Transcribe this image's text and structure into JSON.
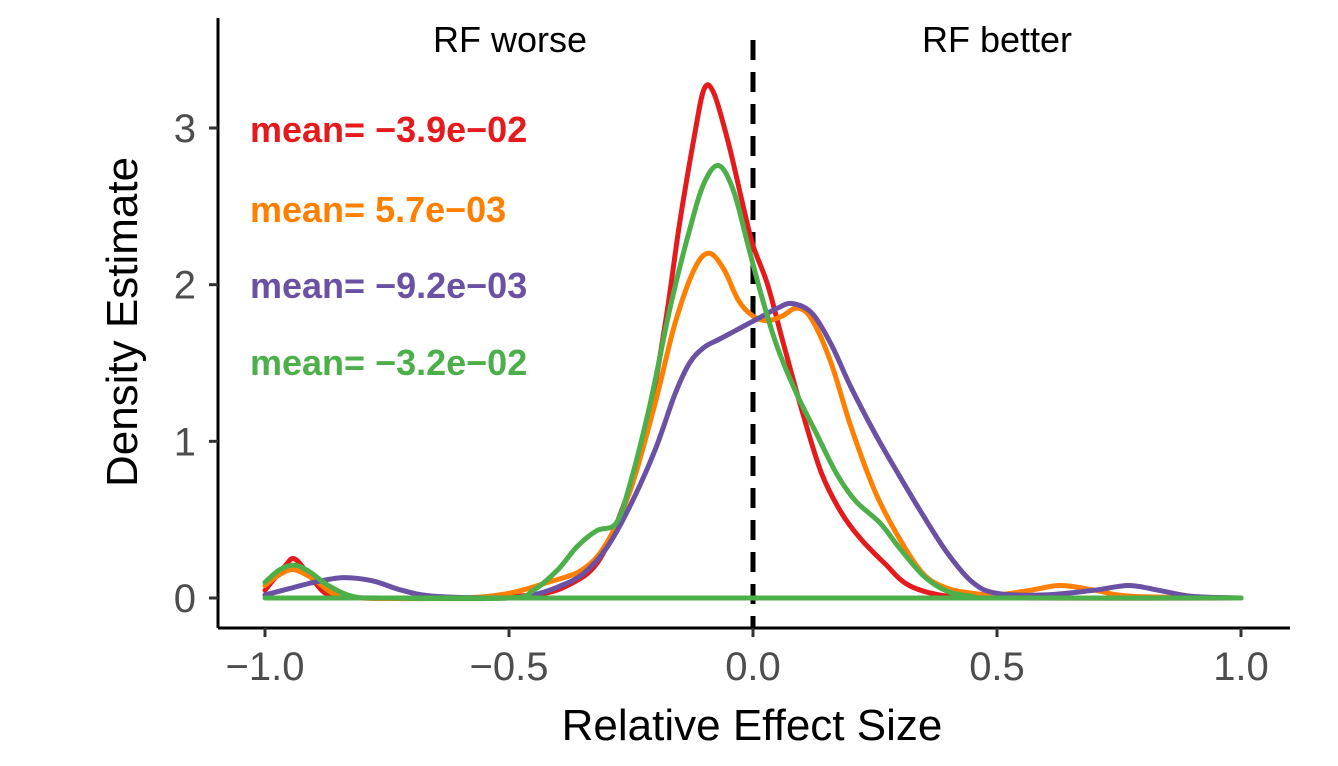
{
  "chart_data": {
    "type": "line",
    "xlabel": "Relative Effect Size",
    "ylabel": "Density Estimate",
    "xlim": [
      -1.05,
      1.1
    ],
    "ylim": [
      -0.18,
      3.6
    ],
    "x_ticks": [
      -1.0,
      -0.5,
      0.0,
      0.5,
      1.0
    ],
    "x_tick_labels": [
      "−1.0",
      "−0.5",
      "0.0",
      "0.5",
      "1.0"
    ],
    "y_ticks": [
      0,
      1,
      2,
      3
    ],
    "y_tick_labels": [
      "0",
      "1",
      "2",
      "3"
    ],
    "grid": false,
    "reference_line": {
      "x": 0.0,
      "style": "dashed",
      "color": "#000000"
    },
    "region_labels": [
      {
        "text": "RF worse",
        "x": -0.5
      },
      {
        "text": "RF better",
        "x": 0.5
      }
    ],
    "series": [
      {
        "color": "#e41a1c",
        "mean_label": "mean= −3.9e−02",
        "points": [
          [
            -1.0,
            0.05
          ],
          [
            -0.96,
            0.2
          ],
          [
            -0.94,
            0.25
          ],
          [
            -0.91,
            0.15
          ],
          [
            -0.87,
            0.02
          ],
          [
            -0.8,
            0.0
          ],
          [
            -0.6,
            0.0
          ],
          [
            -0.45,
            0.02
          ],
          [
            -0.38,
            0.08
          ],
          [
            -0.32,
            0.22
          ],
          [
            -0.27,
            0.55
          ],
          [
            -0.22,
            1.05
          ],
          [
            -0.18,
            1.75
          ],
          [
            -0.15,
            2.4
          ],
          [
            -0.12,
            2.95
          ],
          [
            -0.1,
            3.25
          ],
          [
            -0.08,
            3.22
          ],
          [
            -0.05,
            2.9
          ],
          [
            -0.02,
            2.5
          ],
          [
            0.0,
            2.25
          ],
          [
            0.03,
            2.0
          ],
          [
            0.06,
            1.65
          ],
          [
            0.1,
            1.2
          ],
          [
            0.14,
            0.8
          ],
          [
            0.18,
            0.55
          ],
          [
            0.22,
            0.38
          ],
          [
            0.27,
            0.22
          ],
          [
            0.32,
            0.08
          ],
          [
            0.4,
            0.01
          ],
          [
            0.5,
            0.0
          ],
          [
            1.0,
            0.0
          ]
        ]
      },
      {
        "color": "#ff7f00",
        "mean_label": "mean= 5.7e−03",
        "points": [
          [
            -1.0,
            0.08
          ],
          [
            -0.97,
            0.15
          ],
          [
            -0.94,
            0.18
          ],
          [
            -0.9,
            0.12
          ],
          [
            -0.86,
            0.03
          ],
          [
            -0.8,
            0.0
          ],
          [
            -0.6,
            0.0
          ],
          [
            -0.5,
            0.03
          ],
          [
            -0.42,
            0.1
          ],
          [
            -0.35,
            0.18
          ],
          [
            -0.3,
            0.35
          ],
          [
            -0.25,
            0.7
          ],
          [
            -0.2,
            1.25
          ],
          [
            -0.16,
            1.75
          ],
          [
            -0.12,
            2.1
          ],
          [
            -0.09,
            2.2
          ],
          [
            -0.06,
            2.1
          ],
          [
            -0.03,
            1.9
          ],
          [
            0.0,
            1.8
          ],
          [
            0.03,
            1.77
          ],
          [
            0.06,
            1.8
          ],
          [
            0.09,
            1.85
          ],
          [
            0.12,
            1.78
          ],
          [
            0.16,
            1.5
          ],
          [
            0.2,
            1.1
          ],
          [
            0.25,
            0.68
          ],
          [
            0.3,
            0.38
          ],
          [
            0.35,
            0.15
          ],
          [
            0.4,
            0.06
          ],
          [
            0.45,
            0.03
          ],
          [
            0.5,
            0.02
          ],
          [
            0.57,
            0.05
          ],
          [
            0.63,
            0.08
          ],
          [
            0.7,
            0.05
          ],
          [
            0.78,
            0.01
          ],
          [
            1.0,
            0.0
          ]
        ]
      },
      {
        "color": "#6a51a3",
        "mean_label": "mean= −9.2e−03",
        "points": [
          [
            -1.0,
            0.02
          ],
          [
            -0.95,
            0.06
          ],
          [
            -0.9,
            0.1
          ],
          [
            -0.84,
            0.13
          ],
          [
            -0.78,
            0.11
          ],
          [
            -0.72,
            0.05
          ],
          [
            -0.65,
            0.01
          ],
          [
            -0.5,
            0.0
          ],
          [
            -0.45,
            0.02
          ],
          [
            -0.4,
            0.07
          ],
          [
            -0.35,
            0.15
          ],
          [
            -0.3,
            0.32
          ],
          [
            -0.25,
            0.6
          ],
          [
            -0.2,
            0.95
          ],
          [
            -0.16,
            1.3
          ],
          [
            -0.13,
            1.5
          ],
          [
            -0.1,
            1.6
          ],
          [
            -0.07,
            1.65
          ],
          [
            -0.04,
            1.7
          ],
          [
            -0.01,
            1.75
          ],
          [
            0.02,
            1.8
          ],
          [
            0.05,
            1.85
          ],
          [
            0.08,
            1.88
          ],
          [
            0.12,
            1.82
          ],
          [
            0.16,
            1.62
          ],
          [
            0.2,
            1.35
          ],
          [
            0.25,
            1.05
          ],
          [
            0.3,
            0.78
          ],
          [
            0.35,
            0.52
          ],
          [
            0.4,
            0.28
          ],
          [
            0.45,
            0.1
          ],
          [
            0.5,
            0.03
          ],
          [
            0.6,
            0.02
          ],
          [
            0.7,
            0.05
          ],
          [
            0.77,
            0.08
          ],
          [
            0.83,
            0.05
          ],
          [
            0.9,
            0.01
          ],
          [
            1.0,
            0.0
          ]
        ]
      },
      {
        "color": "#4daf4a",
        "mean_label": "mean= −3.2e−02",
        "points": [
          [
            -1.0,
            0.1
          ],
          [
            -0.97,
            0.18
          ],
          [
            -0.94,
            0.21
          ],
          [
            -0.91,
            0.17
          ],
          [
            -0.87,
            0.08
          ],
          [
            -0.82,
            0.01
          ],
          [
            -0.75,
            0.0
          ],
          [
            -0.5,
            0.0
          ],
          [
            -0.45,
            0.05
          ],
          [
            -0.4,
            0.18
          ],
          [
            -0.36,
            0.33
          ],
          [
            -0.32,
            0.43
          ],
          [
            -0.28,
            0.48
          ],
          [
            -0.25,
            0.75
          ],
          [
            -0.21,
            1.25
          ],
          [
            -0.17,
            1.85
          ],
          [
            -0.13,
            2.35
          ],
          [
            -0.1,
            2.65
          ],
          [
            -0.07,
            2.76
          ],
          [
            -0.04,
            2.6
          ],
          [
            -0.01,
            2.25
          ],
          [
            0.02,
            1.9
          ],
          [
            0.05,
            1.6
          ],
          [
            0.09,
            1.3
          ],
          [
            0.13,
            1.05
          ],
          [
            0.17,
            0.8
          ],
          [
            0.21,
            0.62
          ],
          [
            0.26,
            0.48
          ],
          [
            0.3,
            0.32
          ],
          [
            0.35,
            0.14
          ],
          [
            0.4,
            0.04
          ],
          [
            0.45,
            0.01
          ],
          [
            0.5,
            0.0
          ],
          [
            1.0,
            0.0
          ]
        ]
      },
      {
        "color": "#4daf4a",
        "points": [
          [
            -1.0,
            0.0
          ],
          [
            1.0,
            0.0
          ]
        ]
      }
    ]
  }
}
